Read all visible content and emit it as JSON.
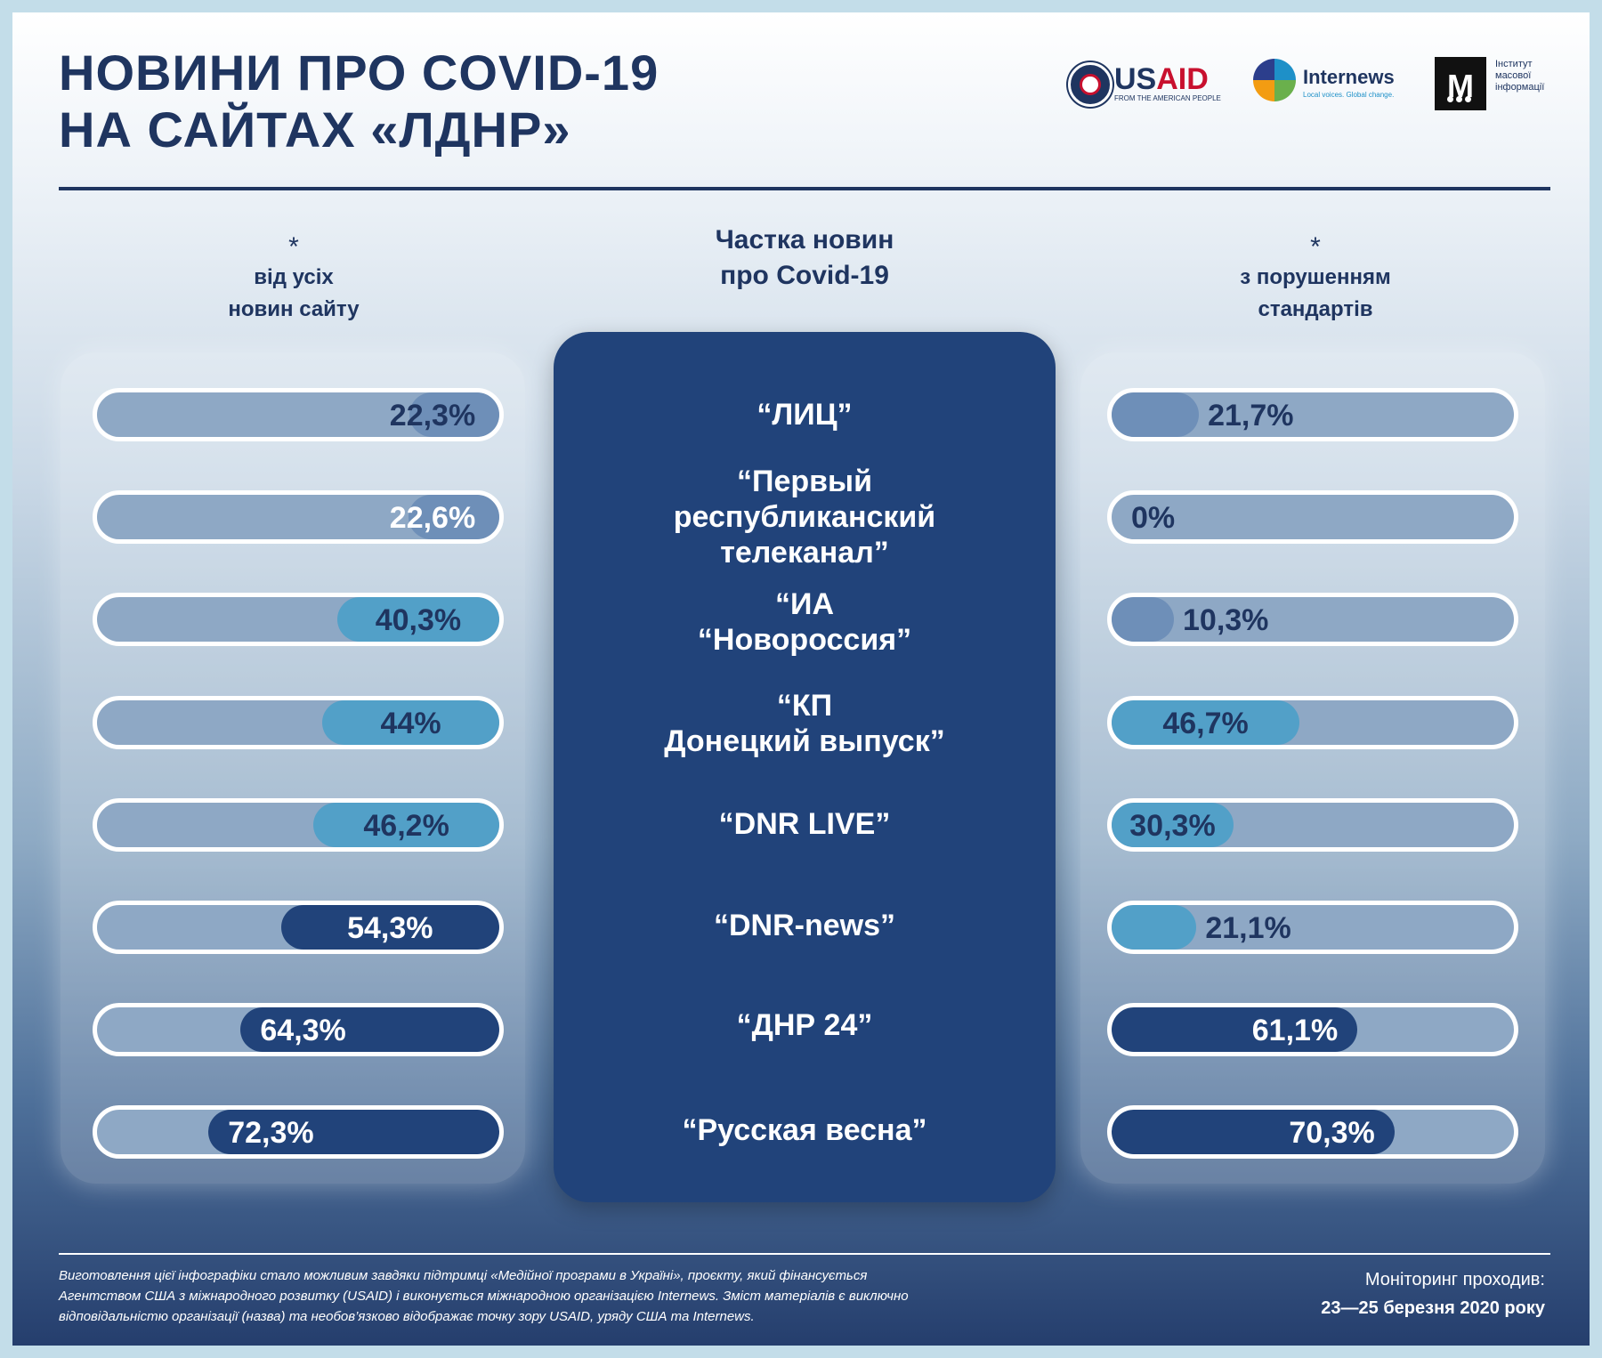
{
  "title": [
    "НОВИНИ ПРО COVID-19",
    "НА САЙТАХ «ЛДНР»"
  ],
  "logos": {
    "usaid": {
      "prefix": "US",
      "suffix": "AID",
      "tagline": "FROM THE AMERICAN PEOPLE"
    },
    "internews": {
      "name": "Internews",
      "tagline": "Local voices. Global change."
    },
    "imi": {
      "mark": "М",
      "text": [
        "Інститут",
        "масової",
        "інформації"
      ]
    }
  },
  "headers": {
    "left": {
      "star": "*",
      "lines": [
        "від усіх",
        "новин сайту"
      ]
    },
    "center": {
      "lines": [
        "Частка новин",
        "про Covid-19"
      ]
    },
    "right": {
      "star": "*",
      "lines": [
        "з порушенням",
        "стандартів"
      ]
    }
  },
  "chart_data": {
    "type": "bar",
    "categories": [
      "“ЛИЦ”",
      "“Первый республиканский телеканал”",
      "“ИА “Новороссия”",
      "“КП Донецкий выпуск”",
      "“DNR LIVE”",
      "“DNR-news”",
      "“ДНР 24”",
      "“Русская весна”"
    ],
    "category_lines": [
      [
        "“ЛИЦ”"
      ],
      [
        "“Первый",
        "республиканский",
        "телеканал”"
      ],
      [
        "“ИА",
        "“Новороссия”"
      ],
      [
        "“КП",
        "Донецкий выпуск”"
      ],
      [
        "“DNR LIVE”"
      ],
      [
        "“DNR-news”"
      ],
      [
        "“ДНР 24”"
      ],
      [
        "“Русская весна”"
      ]
    ],
    "ylim": [
      0,
      100
    ],
    "series": [
      {
        "name": "від усіх новин сайту",
        "direction": "right-aligned",
        "values": [
          22.3,
          22.6,
          40.3,
          44,
          46.2,
          54.3,
          64.3,
          72.3
        ],
        "labels": [
          "22,3%",
          "22,6%",
          "40,3%",
          "44%",
          "46,2%",
          "54,3%",
          "64,3%",
          "72,3%"
        ],
        "colors": [
          "#6e8fb8",
          "#6e8fb8",
          "#52a0c8",
          "#52a0c8",
          "#52a0c8",
          "#21437a",
          "#21437a",
          "#21437a"
        ],
        "text_colors": [
          "#1f3560",
          "#ffffff",
          "#1f3560",
          "#1f3560",
          "#1f3560",
          "#ffffff",
          "#ffffff",
          "#ffffff"
        ]
      },
      {
        "name": "з порушенням стандартів",
        "direction": "left-aligned",
        "values": [
          21.7,
          0,
          10.3,
          46.7,
          30.3,
          21.1,
          61.1,
          70.3
        ],
        "labels": [
          "21,7%",
          "0%",
          "10,3%",
          "46,7%",
          "30,3%",
          "21,1%",
          "61,1%",
          "70,3%"
        ],
        "colors": [
          "#6e8fb8",
          "#6e8fb8",
          "#6e8fb8",
          "#52a0c8",
          "#52a0c8",
          "#52a0c8",
          "#21437a",
          "#21437a"
        ],
        "text_colors": [
          "#1f3560",
          "#1f3560",
          "#1f3560",
          "#1f3560",
          "#1f3560",
          "#1f3560",
          "#ffffff",
          "#ffffff"
        ]
      }
    ]
  },
  "footer": {
    "note": "Виготовлення цієї інфографіки стало можливим завдяки підтримці «Медійної програми в Україні», проєкту, який фінансується Агентством США з міжнародного розвитку (USAID) і виконується міжнародною організацією Internews. Зміст матеріалів є виключно відповідальністю організації (назва) та необов’язково відображає точку зору USAID, уряду США та Internews.",
    "monitoring_label": "Моніторинг проходив:",
    "monitoring_dates": "23—25 березня 2020 року"
  }
}
